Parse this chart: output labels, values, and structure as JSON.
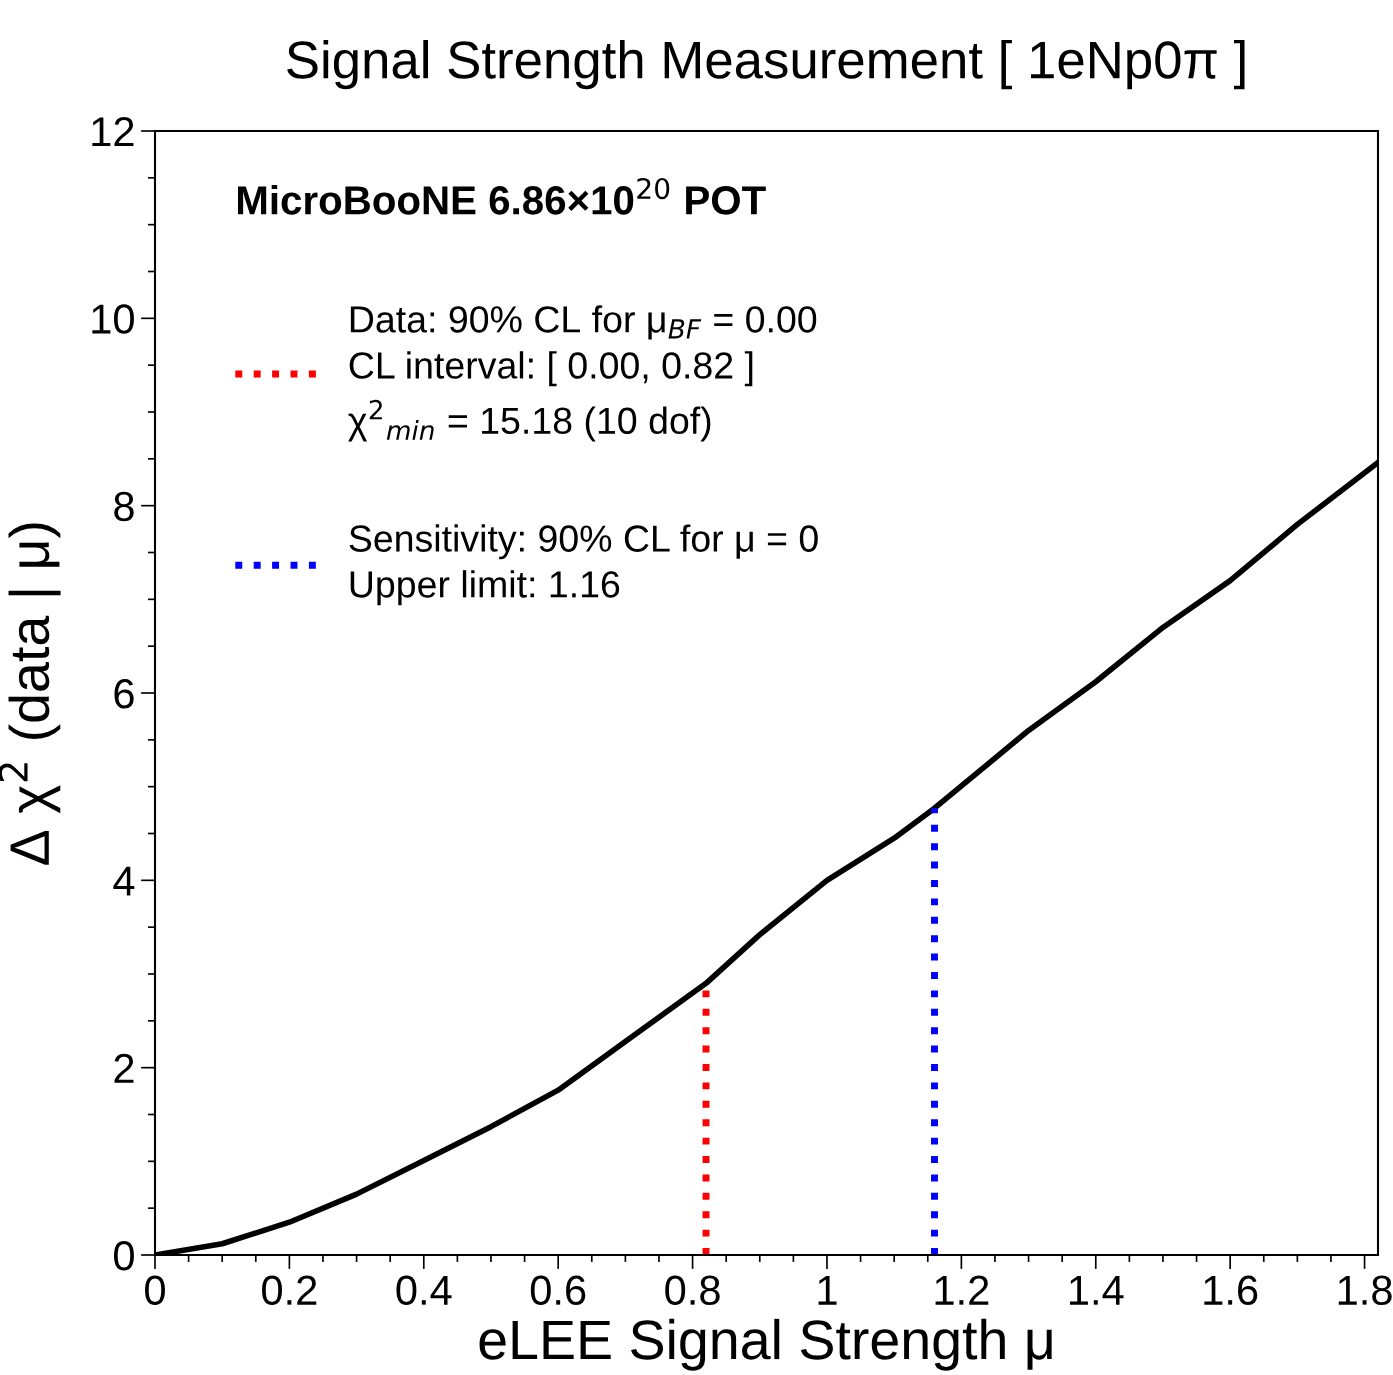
{
  "chart_data": {
    "type": "line",
    "title": "Signal Strength Measurement [ 1eNp0π ]",
    "xlabel": "eLEE Signal Strength μ",
    "ylabel": "Δ χ$^{2}$ (data | μ)",
    "legend_title": "MicroBooNE 6.86×10$^{20}$ POT",
    "series": [
      {
        "color": "#000000",
        "line_style": "solid",
        "x": [
          0,
          0.1,
          0.2,
          0.3,
          0.4,
          0.5,
          0.6,
          0.7,
          0.82,
          0.9,
          1.0,
          1.1,
          1.16,
          1.3,
          1.4,
          1.5,
          1.6,
          1.7,
          1.82
        ],
        "values": [
          0,
          0.12,
          0.35,
          0.65,
          1.01,
          1.37,
          1.76,
          2.28,
          2.9,
          3.42,
          4.0,
          4.45,
          4.77,
          5.6,
          6.12,
          6.7,
          7.2,
          7.8,
          8.46
        ]
      },
      {
        "name": "Data: 90% CL for μ$_{BF}$ = 0.00\nCL interval: [ 0.00, 0.82 ]\nχ$^{2}$$_{min}$ = 15.18 (10 dof)",
        "color": "#ff0000",
        "line_style": "dotted",
        "x": [
          0.82,
          0.82
        ],
        "values": [
          0,
          2.9
        ]
      },
      {
        "name": "Sensitivity: 90% CL for μ = 0\nUpper limit: 1.16",
        "color": "#0000ff",
        "line_style": "dotted",
        "x": [
          1.16,
          1.16
        ],
        "values": [
          0,
          4.77
        ]
      }
    ],
    "xlim": [
      0,
      1.82
    ],
    "xticks": [
      0,
      0.2,
      0.4,
      0.6,
      0.8,
      1,
      1.2,
      1.4,
      1.6,
      1.8
    ],
    "ylim": [
      0,
      12
    ],
    "yticks": [
      0,
      2,
      4,
      6,
      8,
      10,
      12
    ],
    "grid": false,
    "legend": "top left",
    "marker": "none"
  }
}
